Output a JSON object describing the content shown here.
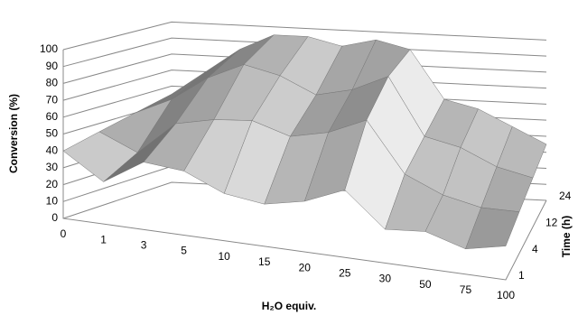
{
  "chart_data": {
    "type": "surface",
    "y_label": "Conversion (%)",
    "x_label": "H₂O equiv.",
    "z_label": "Time (h)",
    "categories": [
      "0",
      "1",
      "3",
      "5",
      "10",
      "15",
      "20",
      "25",
      "30",
      "50",
      "75",
      "100"
    ],
    "series": [
      {
        "name": "1",
        "values": [
          40,
          25,
          40,
          38,
          28,
          25,
          30,
          40,
          20,
          22,
          15,
          20
        ]
      },
      {
        "name": "4",
        "values": [
          45,
          35,
          55,
          60,
          62,
          55,
          60,
          70,
          40,
          30,
          25,
          25
        ]
      },
      {
        "name": "12",
        "values": [
          50,
          60,
          75,
          85,
          80,
          70,
          75,
          85,
          50,
          45,
          35,
          30
        ]
      },
      {
        "name": "24",
        "values": [
          55,
          70,
          85,
          95,
          95,
          90,
          95,
          90,
          60,
          55,
          45,
          35
        ]
      }
    ],
    "ylim": [
      0,
      100
    ],
    "yticks": [
      0,
      10,
      20,
      30,
      40,
      50,
      60,
      70,
      80,
      90,
      100
    ],
    "grid": true
  }
}
